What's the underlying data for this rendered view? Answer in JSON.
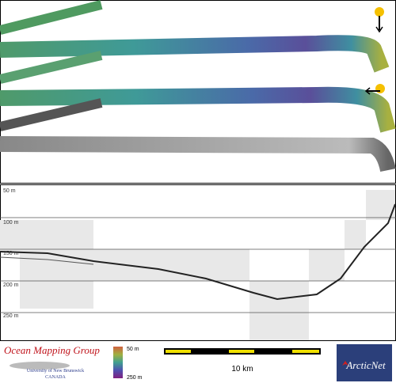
{
  "profile": {
    "depth_labels": [
      "50 m",
      "100 m",
      "150 m",
      "200 m",
      "250 m"
    ]
  },
  "logo": {
    "title": "Ocean Mapping Group",
    "university": "University of New Brunswick",
    "country": "CANADA"
  },
  "colorbar": {
    "top_label": "50 m",
    "bottom_label": "250 m"
  },
  "scale_bar": {
    "label": "10 km"
  },
  "partner_logo": {
    "label": "ArcticNet"
  }
}
